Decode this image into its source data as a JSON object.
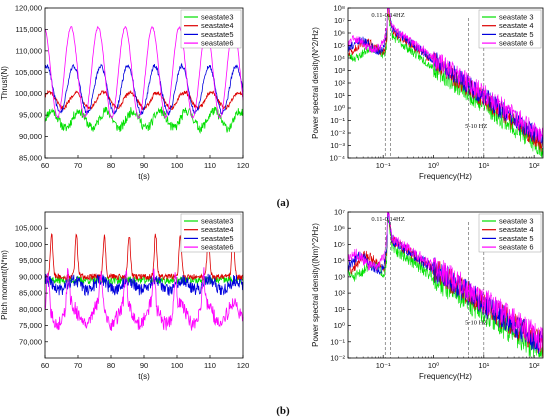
{
  "colors": {
    "seastate3": "#00e000",
    "seastate4": "#dd0000",
    "seastate5": "#0000dd",
    "seastate6": "#ff00ff"
  },
  "chart_data": [
    {
      "type": "line",
      "ylabel": "Thrust(N)",
      "xlabel": "t(s)",
      "xlim": [
        60,
        120
      ],
      "ylim": [
        85000,
        120000
      ],
      "xticks": [
        "60",
        "70",
        "80",
        "90",
        "100",
        "110",
        "120"
      ],
      "yticks": [
        "85,000",
        "90,000",
        "95,000",
        "100,000",
        "105,000",
        "110,000",
        "115,000",
        "120,000"
      ],
      "legend_position": "top-right",
      "series": [
        {
          "name": "seastate3",
          "mean": 94000,
          "amplitude": 2000,
          "noise": 1100,
          "peaks": [],
          "period_s": 8.2,
          "peak_value": 97000
        },
        {
          "name": "seastate4",
          "mean": 98500,
          "amplitude": 1800,
          "noise": 500,
          "peaks": [],
          "period_s": 8.2,
          "peak_value": 102000
        },
        {
          "name": "seastate5",
          "mean": 101000,
          "amplitude": 5500,
          "noise": 500,
          "peaks": [],
          "period_s": 8.2,
          "peak_value": 107000
        },
        {
          "name": "seastate6",
          "mean": 105000,
          "amplitude": 10500,
          "noise": 250,
          "peaks": [],
          "period_s": 8.2,
          "peak_value": 116000
        }
      ]
    },
    {
      "type": "line",
      "ylabel": "Power spectral density(N^2/Hz)",
      "xlabel": "Frequency(Hz)",
      "xscale": "log",
      "yscale": "log",
      "xlim": [
        0.02,
        150
      ],
      "ylim": [
        0.0001,
        100000000
      ],
      "xticks": [
        "10⁻¹",
        "10⁰",
        "10¹",
        "10²"
      ],
      "yticks": [
        "10⁻⁴",
        "10⁻³",
        "10⁻²",
        "10⁻¹",
        "10⁰",
        "10¹",
        "10²",
        "10³",
        "10⁴",
        "10⁵",
        "10⁶",
        "10⁷",
        "10⁸"
      ],
      "annotations": [
        "0.11-0.14HZ",
        "5-10 HZ"
      ],
      "dashed_lines_hz": [
        0.11,
        0.14,
        5,
        10
      ],
      "legend_position": "top-right",
      "series": [
        {
          "name": "seastate 3",
          "level_at_peak": 1000000,
          "floor": 0.001
        },
        {
          "name": "seastate 4",
          "level_at_peak": 3000000,
          "floor": 0.003
        },
        {
          "name": "seastate 5",
          "level_at_peak": 4000000,
          "floor": 0.005
        },
        {
          "name": "seastate 6",
          "level_at_peak": 5000000,
          "floor": 0.01
        }
      ]
    },
    {
      "type": "line",
      "ylabel": "Pitch moment(N*m)",
      "xlabel": "t(s)",
      "xlim": [
        60,
        120
      ],
      "ylim": [
        65000,
        110000
      ],
      "xticks": [
        "60",
        "70",
        "80",
        "90",
        "100",
        "110",
        "120"
      ],
      "yticks": [
        "70,000",
        "75,000",
        "80,000",
        "85,000",
        "90,000",
        "95,000",
        "100,000",
        "105,000"
      ],
      "legend_position": "top-right",
      "series": [
        {
          "name": "seastate3",
          "mean": 89000,
          "amplitude": 0,
          "noise": 1200,
          "peaks": [],
          "period_s": 8.2,
          "peak_value": 92000
        },
        {
          "name": "seastate4",
          "mean": 90000,
          "amplitude": 0,
          "noise": 900,
          "peaks": [
            62,
            69.5,
            78,
            85.5,
            93.5,
            101,
            109.5,
            117
          ],
          "period_s": 8.2,
          "peak_value": 103000
        },
        {
          "name": "seastate5",
          "mean": 87500,
          "amplitude": 1500,
          "noise": 2000,
          "peaks": [],
          "period_s": 8.2,
          "peak_value": 93000
        },
        {
          "name": "seastate6",
          "mean": 78500,
          "amplitude": 3000,
          "noise": 2300,
          "peaks": [
            61,
            67,
            77,
            84.5,
            93,
            99.5,
            108
          ],
          "period_s": 8.2,
          "peak_value": 89000
        }
      ]
    },
    {
      "type": "line",
      "ylabel": "Power spectral density((Nm)^2/Hz)",
      "xlabel": "Frequency(Hz)",
      "xscale": "log",
      "yscale": "log",
      "xlim": [
        0.02,
        150
      ],
      "ylim": [
        0.01,
        10000000
      ],
      "xticks": [
        "10⁻¹",
        "10⁰",
        "10¹",
        "10²"
      ],
      "yticks": [
        "10⁻²",
        "10⁻¹",
        "10⁰",
        "10¹",
        "10²",
        "10³",
        "10⁴",
        "10⁵",
        "10⁶",
        "10⁷"
      ],
      "annotations": [
        "0.11-0.14HZ",
        "5-10 HZ"
      ],
      "dashed_lines_hz": [
        0.11,
        0.14,
        5,
        10
      ],
      "legend_position": "top-right",
      "series": [
        {
          "name": "seastate 3",
          "level_at_peak": 100000,
          "floor": 0.03
        },
        {
          "name": "seastate 4",
          "level_at_peak": 300000,
          "floor": 0.1
        },
        {
          "name": "seastate 5",
          "level_at_peak": 300000,
          "floor": 0.1
        },
        {
          "name": "seastate 6",
          "level_at_peak": 400000,
          "floor": 0.2
        }
      ]
    }
  ],
  "panel_labels": {
    "a": "(a)",
    "b": "(b)"
  }
}
